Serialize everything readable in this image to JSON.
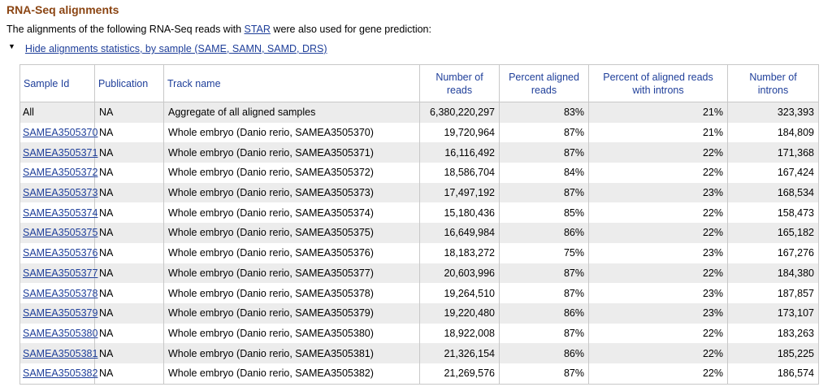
{
  "section": {
    "title": "RNA-Seq alignments",
    "intro_before": "The alignments of the following RNA-Seq reads with ",
    "intro_link": "STAR",
    "intro_after": " were also used for gene prediction:",
    "toggle_label": " Hide alignments statistics, by sample (SAME, SAMN, SAMD, DRS)"
  },
  "table": {
    "headers": {
      "sample_id": "Sample Id",
      "publication": "Publication",
      "track_name": "Track name",
      "num_reads_1": "Number of",
      "num_reads_2": "reads",
      "pct_aligned_1": "Percent aligned",
      "pct_aligned_2": "reads",
      "pct_introns_1": "Percent of aligned reads",
      "pct_introns_2": "with introns",
      "num_introns_1": "Number of",
      "num_introns_2": "introns"
    },
    "rows": [
      {
        "sample_id": "All",
        "publication": "NA",
        "track": "Aggregate of all aligned samples",
        "reads": "6,380,220,297",
        "pct_aligned": "83%",
        "pct_introns": "21%",
        "introns": "323,393",
        "linked": false
      },
      {
        "sample_id": "SAMEA3505370",
        "publication": "NA",
        "track": "Whole embryo (Danio rerio, SAMEA3505370)",
        "reads": "19,720,964",
        "pct_aligned": "87%",
        "pct_introns": "21%",
        "introns": "184,809",
        "linked": true
      },
      {
        "sample_id": "SAMEA3505371",
        "publication": "NA",
        "track": "Whole embryo (Danio rerio, SAMEA3505371)",
        "reads": "16,116,492",
        "pct_aligned": "87%",
        "pct_introns": "22%",
        "introns": "171,368",
        "linked": true
      },
      {
        "sample_id": "SAMEA3505372",
        "publication": "NA",
        "track": "Whole embryo (Danio rerio, SAMEA3505372)",
        "reads": "18,586,704",
        "pct_aligned": "84%",
        "pct_introns": "22%",
        "introns": "167,424",
        "linked": true
      },
      {
        "sample_id": "SAMEA3505373",
        "publication": "NA",
        "track": "Whole embryo (Danio rerio, SAMEA3505373)",
        "reads": "17,497,192",
        "pct_aligned": "87%",
        "pct_introns": "23%",
        "introns": "168,534",
        "linked": true
      },
      {
        "sample_id": "SAMEA3505374",
        "publication": "NA",
        "track": "Whole embryo (Danio rerio, SAMEA3505374)",
        "reads": "15,180,436",
        "pct_aligned": "85%",
        "pct_introns": "22%",
        "introns": "158,473",
        "linked": true
      },
      {
        "sample_id": "SAMEA3505375",
        "publication": "NA",
        "track": "Whole embryo (Danio rerio, SAMEA3505375)",
        "reads": "16,649,984",
        "pct_aligned": "86%",
        "pct_introns": "22%",
        "introns": "165,182",
        "linked": true
      },
      {
        "sample_id": "SAMEA3505376",
        "publication": "NA",
        "track": "Whole embryo (Danio rerio, SAMEA3505376)",
        "reads": "18,183,272",
        "pct_aligned": "75%",
        "pct_introns": "23%",
        "introns": "167,276",
        "linked": true
      },
      {
        "sample_id": "SAMEA3505377",
        "publication": "NA",
        "track": "Whole embryo (Danio rerio, SAMEA3505377)",
        "reads": "20,603,996",
        "pct_aligned": "87%",
        "pct_introns": "22%",
        "introns": "184,380",
        "linked": true
      },
      {
        "sample_id": "SAMEA3505378",
        "publication": "NA",
        "track": "Whole embryo (Danio rerio, SAMEA3505378)",
        "reads": "19,264,510",
        "pct_aligned": "87%",
        "pct_introns": "23%",
        "introns": "187,857",
        "linked": true
      },
      {
        "sample_id": "SAMEA3505379",
        "publication": "NA",
        "track": "Whole embryo (Danio rerio, SAMEA3505379)",
        "reads": "19,220,480",
        "pct_aligned": "86%",
        "pct_introns": "23%",
        "introns": "173,107",
        "linked": true
      },
      {
        "sample_id": "SAMEA3505380",
        "publication": "NA",
        "track": "Whole embryo (Danio rerio, SAMEA3505380)",
        "reads": "18,922,008",
        "pct_aligned": "87%",
        "pct_introns": "22%",
        "introns": "183,263",
        "linked": true
      },
      {
        "sample_id": "SAMEA3505381",
        "publication": "NA",
        "track": "Whole embryo (Danio rerio, SAMEA3505381)",
        "reads": "21,326,154",
        "pct_aligned": "86%",
        "pct_introns": "22%",
        "introns": "185,225",
        "linked": true
      },
      {
        "sample_id": "SAMEA3505382",
        "publication": "NA",
        "track": "Whole embryo (Danio rerio, SAMEA3505382)",
        "reads": "21,269,576",
        "pct_aligned": "87%",
        "pct_introns": "22%",
        "introns": "186,574",
        "linked": true
      }
    ]
  },
  "colors": {
    "heading": "#8b4513",
    "link": "#1f3f9a",
    "row_shade": "#ececec",
    "border": "#c8c8c8"
  }
}
